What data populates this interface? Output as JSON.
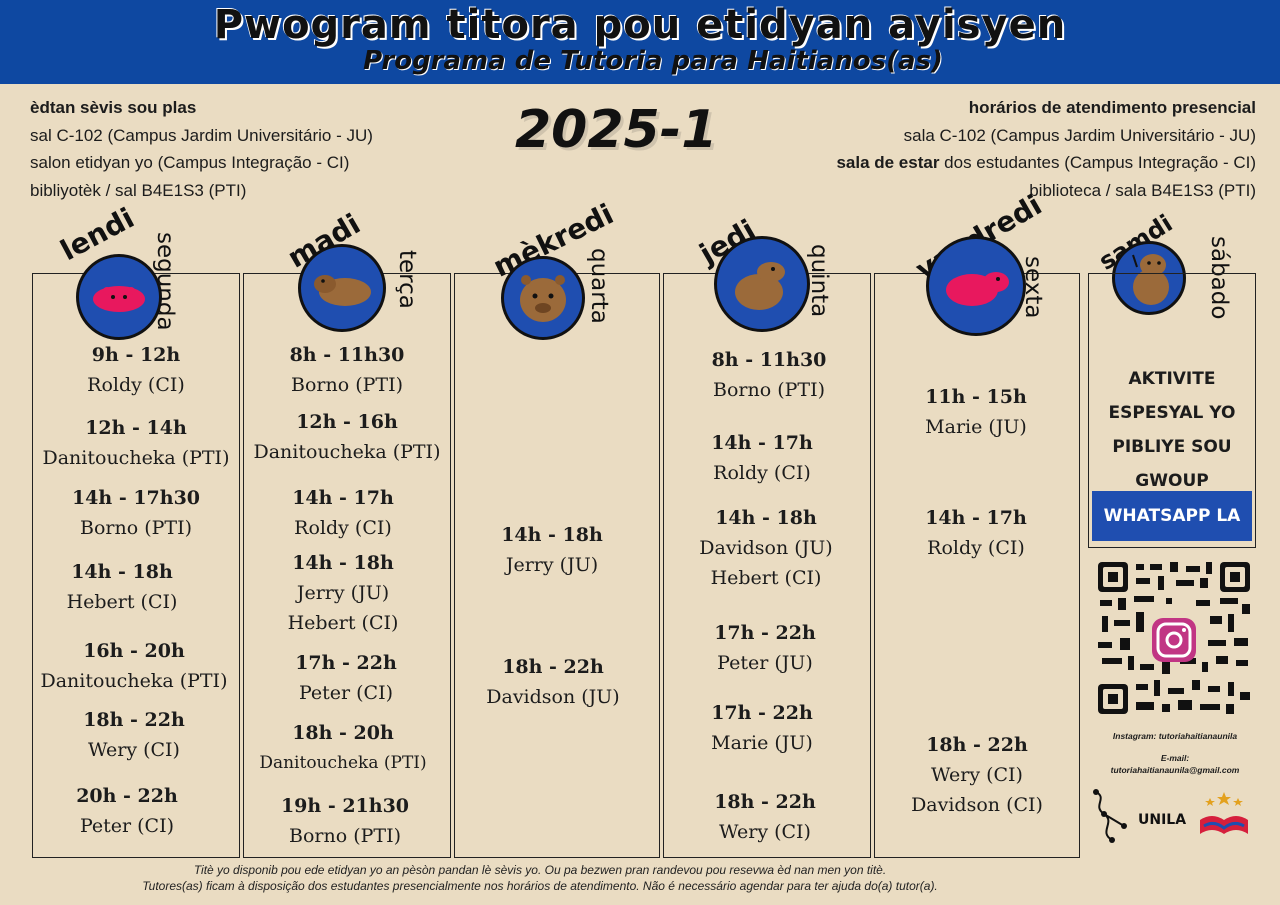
{
  "header": {
    "title": "Pwogram titora pou etidyan ayisyen",
    "subtitle": "Programa de Tutoria para Haitianos(as)"
  },
  "year": "2025-1",
  "info_left": {
    "heading": "èdtan sèvis sou plas",
    "line1": "sal C-102 (Campus Jardim Universitário - JU)",
    "line2": "salon etidyan yo  (Campus Integração - CI)",
    "line3": "bibliyotèk / sal B4E1S3  (PTI)"
  },
  "info_right": {
    "heading": "horários de atendimento presencial",
    "line1": "sala C-102 (Campus Jardim Universitário - JU)",
    "line2_bold": "sala de estar",
    "line2_rest": " dos estudantes (Campus Integração - CI)",
    "line3": "biblioteca / sala B4E1S3 (PTI)"
  },
  "days": [
    {
      "kreyol": "lendi",
      "portuguese": "segunda"
    },
    {
      "kreyol": "madi",
      "portuguese": "terça"
    },
    {
      "kreyol": "mèkredi",
      "portuguese": "quarta"
    },
    {
      "kreyol": "jedi",
      "portuguese": "quinta"
    },
    {
      "kreyol": "vandredi",
      "portuguese": "sexta"
    },
    {
      "kreyol": "samdi",
      "portuguese": "sábado"
    }
  ],
  "schedule": {
    "monday": [
      {
        "time": "9h - 12h",
        "tutor": "Roldy (CI)"
      },
      {
        "time": "12h - 14h",
        "tutor": "Danitoucheka (PTI)"
      },
      {
        "time": "14h - 17h30",
        "tutor": "Borno (PTI)"
      },
      {
        "time": "14h - 18h",
        "tutor": "Hebert (CI)"
      },
      {
        "time": "16h - 20h",
        "tutor": "Danitoucheka (PTI)"
      },
      {
        "time": "18h - 22h",
        "tutor": "Wery (CI)"
      },
      {
        "time": "20h - 22h",
        "tutor": "Peter (CI)"
      }
    ],
    "tuesday": [
      {
        "time": "8h - 11h30",
        "tutor": "Borno (PTI)"
      },
      {
        "time": "12h - 16h",
        "tutor": "Danitoucheka (PTI)"
      },
      {
        "time": "14h - 17h",
        "tutor": "Roldy (CI)"
      },
      {
        "time": "14h - 18h",
        "tutor": "Jerry (JU)",
        "tutor2": "Hebert (CI)"
      },
      {
        "time": "17h - 22h",
        "tutor": "Peter (CI)"
      },
      {
        "time": "18h - 20h",
        "tutor": "Danitoucheka (PTI)"
      },
      {
        "time": "19h - 21h30",
        "tutor": "Borno (PTI)"
      }
    ],
    "wednesday": [
      {
        "time": "14h - 18h",
        "tutor": "Jerry (JU)"
      },
      {
        "time": "18h - 22h",
        "tutor": "Davidson (JU)"
      }
    ],
    "thursday": [
      {
        "time": "8h - 11h30",
        "tutor": "Borno (PTI)"
      },
      {
        "time": "14h - 17h",
        "tutor": "Roldy (CI)"
      },
      {
        "time": "14h - 18h",
        "tutor": "Davidson (JU)",
        "tutor2": "Hebert (CI)"
      },
      {
        "time": "17h - 22h",
        "tutor": "Peter (JU)"
      },
      {
        "time": "17h - 22h",
        "tutor": "Marie (JU)"
      },
      {
        "time": "18h - 22h",
        "tutor": "Wery (CI)"
      }
    ],
    "friday": [
      {
        "time": "11h - 15h",
        "tutor": "Marie (JU)"
      },
      {
        "time": "14h - 17h",
        "tutor": "Roldy (CI)"
      },
      {
        "time": "18h - 22h",
        "tutor": "Wery (CI)",
        "tutor2": "Davidson (CI)"
      }
    ]
  },
  "saturday": {
    "activity_line1": "AKTIVITE",
    "activity_line2": "ESPESYAL YO",
    "activity_line3": "PIBLIYE SOU",
    "activity_line4": "GWOUP",
    "whatsapp_label": "WHATSAPP LA"
  },
  "contact": {
    "instagram": "Instagram: tutoriahaitianaunila",
    "email_label": "E-mail:",
    "email": "tutoriahaitianaunila@gmail.com"
  },
  "logos": {
    "unila": "UNILA"
  },
  "footer": {
    "line1": "Titè yo disponib pou ede etidyan yo an pèsòn pandan lè sèvis yo. Ou pa bezwen pran randevou pou resevwa èd nan men yon titè.",
    "line2": "Tutores(as) ficam à disposição dos estudantes presencialmente nos horários de atendimento. Não é necessário agendar para ter ajuda do(a) tutor(a)."
  },
  "colors": {
    "background": "#eadcc2",
    "brand_blue": "#1f4eb0",
    "header_blue": "#0e48a1",
    "capybara_brown": "#9b6a3a",
    "capybara_pink": "#e8185e"
  }
}
